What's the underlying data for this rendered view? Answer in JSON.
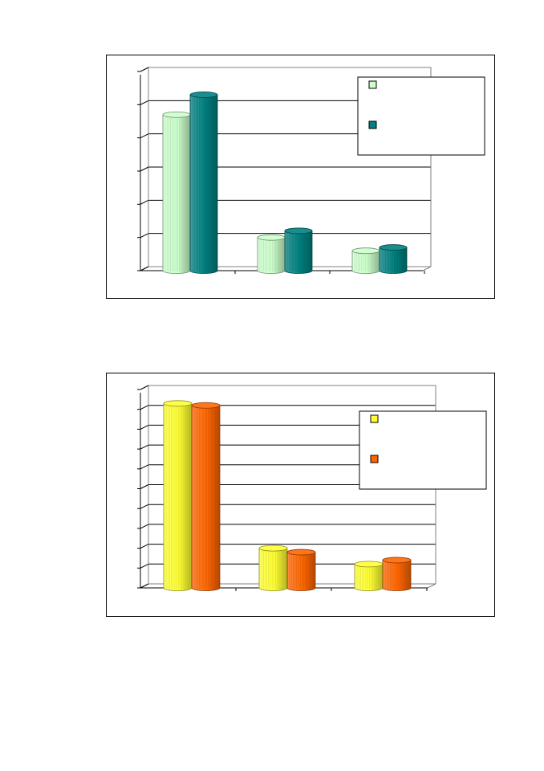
{
  "colors": {
    "chart1_series1": "#ccffcc",
    "chart1_series2": "#008080",
    "chart2_series1": "#ffff33",
    "chart2_series2": "#ff6600",
    "grid": "#000000"
  },
  "chart_data": [
    {
      "type": "bar",
      "style": "3d-cylinder",
      "categories": [
        "",
        "",
        ""
      ],
      "series": [
        {
          "values": [
            4.7,
            1.0,
            0.6
          ]
        },
        {
          "values": [
            5.3,
            1.2,
            0.7
          ]
        }
      ],
      "ylim": [
        0,
        6
      ],
      "grid": true,
      "legend": "top-right"
    },
    {
      "type": "bar",
      "style": "3d-cylinder",
      "categories": [
        "",
        "",
        ""
      ],
      "series": [
        {
          "values": [
            9.3,
            2.0,
            1.2
          ]
        },
        {
          "values": [
            9.2,
            1.8,
            1.4
          ]
        }
      ],
      "ylim": [
        0,
        10
      ],
      "grid": true,
      "legend": "top-right"
    }
  ]
}
